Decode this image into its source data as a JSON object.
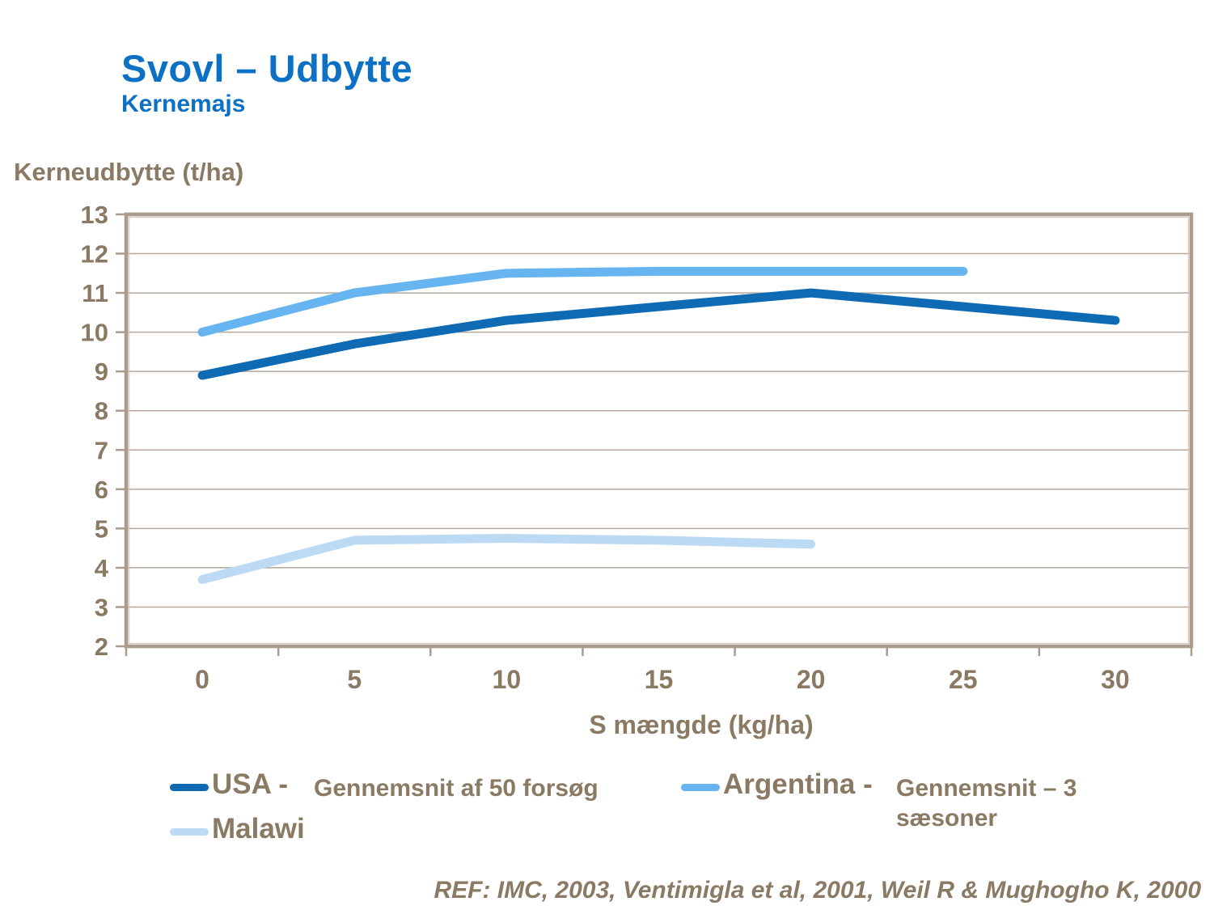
{
  "slide": {
    "title": "Svovl – Udbytte",
    "subtitle": "Kernemajs",
    "footer": "REF: IMC, 2003, Ventimigla et al, 2001, Weil R & Mughogho K, 2000"
  },
  "colors": {
    "title_blue": "#0c70c4",
    "text_brown": "#8a7a64",
    "plot_border": "#a99c8d",
    "plot_border_inner": "#d6ccbf",
    "gridline": "#b5a89b",
    "usa_line": "#0e6bb3",
    "argentina_line": "#66b4f0",
    "malawi_line": "#bcdaf4"
  },
  "chart_data": {
    "type": "line",
    "title": "",
    "y_axis_title": "Kerneudbytte (t/ha)",
    "x_axis_title": "S mængde (kg/ha)",
    "xlabel_unit": "kg/ha",
    "ylabel_unit": "t/ha",
    "categories": [
      0,
      5,
      10,
      15,
      20,
      25,
      30
    ],
    "y_ticks": [
      2,
      3,
      4,
      5,
      6,
      7,
      8,
      9,
      10,
      11,
      12,
      13
    ],
    "ylim": [
      2,
      13
    ],
    "grid": "horizontal",
    "legend_position": "bottom",
    "series": [
      {
        "name": "USA",
        "color": "#0e6bb3",
        "points": [
          [
            0,
            8.9
          ],
          [
            5,
            9.7
          ],
          [
            10,
            10.3
          ],
          [
            20,
            11.0
          ],
          [
            30,
            10.3
          ]
        ]
      },
      {
        "name": "Argentina",
        "color": "#66b4f0",
        "points": [
          [
            0,
            10.0
          ],
          [
            5,
            11.0
          ],
          [
            10,
            11.5
          ],
          [
            15,
            11.55
          ],
          [
            20,
            11.55
          ],
          [
            25,
            11.55
          ]
        ]
      },
      {
        "name": "Malawi",
        "color": "#bcdaf4",
        "points": [
          [
            0,
            3.7
          ],
          [
            5,
            4.7
          ],
          [
            10,
            4.75
          ],
          [
            15,
            4.7
          ],
          [
            20,
            4.6
          ]
        ]
      }
    ],
    "legend": {
      "items": [
        {
          "label": "USA -",
          "desc": "Gennemsnit af 50 forsøg"
        },
        {
          "label": "Argentina -",
          "desc": "Gennemsnit – 3 sæsoner"
        },
        {
          "label": "Malawi",
          "desc": ""
        }
      ]
    }
  }
}
